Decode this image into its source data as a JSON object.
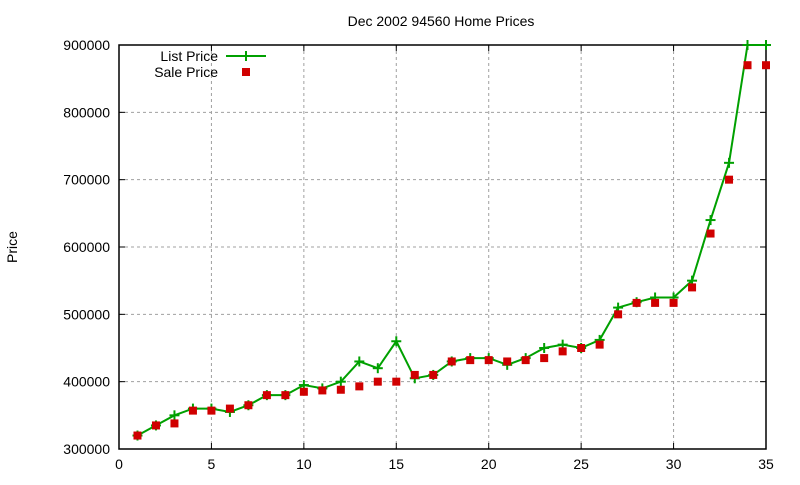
{
  "chart_data": {
    "type": "line",
    "title": "Dec 2002 94560 Home Prices",
    "xlabel": "",
    "ylabel": "Price",
    "xlim": [
      0,
      35
    ],
    "ylim": [
      300000,
      900000
    ],
    "xticks": [
      0,
      5,
      10,
      15,
      20,
      25,
      30,
      35
    ],
    "yticks": [
      300000,
      400000,
      500000,
      600000,
      700000,
      800000,
      900000
    ],
    "grid": true,
    "legend_position": "top-left",
    "x": [
      1,
      2,
      3,
      4,
      5,
      6,
      7,
      8,
      9,
      10,
      11,
      12,
      13,
      14,
      15,
      16,
      17,
      18,
      19,
      20,
      21,
      22,
      23,
      24,
      25,
      26,
      27,
      28,
      29,
      30,
      31,
      32,
      33,
      34,
      35
    ],
    "series": [
      {
        "name": "List Price",
        "style": "linespoints",
        "marker": "plus",
        "color": "#00a000",
        "values": [
          320000,
          335000,
          350000,
          360000,
          360000,
          355000,
          365000,
          380000,
          380000,
          395000,
          390000,
          400000,
          430000,
          420000,
          460000,
          405000,
          410000,
          430000,
          435000,
          435000,
          425000,
          435000,
          450000,
          455000,
          450000,
          462000,
          510000,
          518000,
          525000,
          525000,
          550000,
          640000,
          725000,
          900000,
          900000
        ]
      },
      {
        "name": "Sale Price",
        "style": "points",
        "marker": "square",
        "color": "#d00000",
        "values": [
          320000,
          335000,
          338000,
          357000,
          357000,
          360000,
          365000,
          380000,
          380000,
          385000,
          387000,
          388000,
          393000,
          400000,
          400000,
          410000,
          410000,
          430000,
          432000,
          432000,
          430000,
          432000,
          435000,
          445000,
          450000,
          455000,
          500000,
          517000,
          517000,
          517000,
          540000,
          620000,
          700000,
          870000,
          870000
        ]
      }
    ]
  }
}
